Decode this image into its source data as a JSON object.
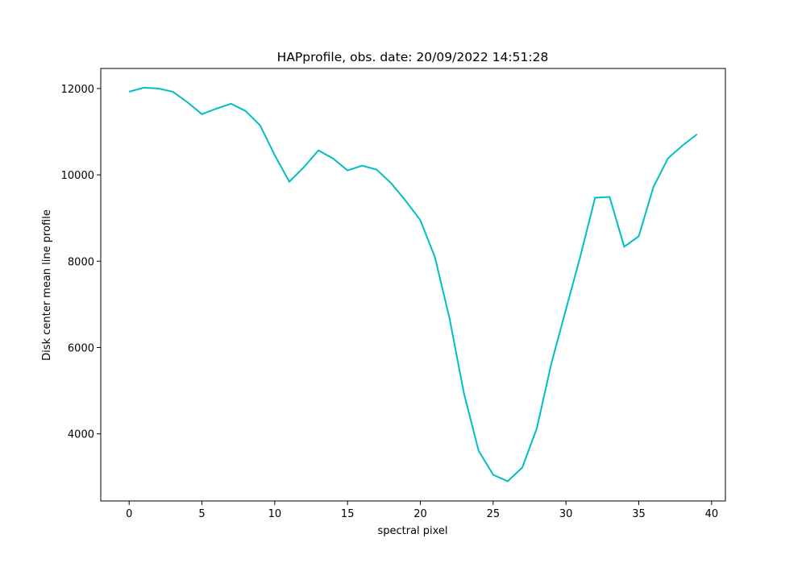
{
  "chart_data": {
    "type": "line",
    "title": "HAPprofile, obs. date: 20/09/2022 14:51:28",
    "xlabel": "spectral pixel",
    "ylabel": "Disk center mean line profile",
    "x": [
      0,
      1,
      2,
      3,
      4,
      5,
      6,
      7,
      8,
      9,
      10,
      11,
      12,
      13,
      14,
      15,
      16,
      17,
      18,
      19,
      20,
      21,
      22,
      23,
      24,
      25,
      26,
      27,
      28,
      29,
      30,
      31,
      32,
      33,
      34,
      35,
      36,
      37,
      38,
      39
    ],
    "series": [
      {
        "color": "#00bfbf",
        "values": [
          11926,
          12019,
          12000,
          11926,
          11684,
          11405,
          11535,
          11647,
          11479,
          11144,
          10456,
          9842,
          10177,
          10567,
          10381,
          10102,
          10214,
          10121,
          9805,
          9395,
          8949,
          8093,
          6679,
          4930,
          3609,
          3051,
          2902,
          3219,
          4130,
          5637,
          6884,
          8130,
          9470,
          9488,
          8335,
          8577,
          9712,
          10381,
          10679,
          10940
        ]
      }
    ],
    "xlim": [
      -1.95,
      40.95
    ],
    "xticks": [
      0,
      5,
      10,
      15,
      20,
      25,
      30,
      35,
      40
    ],
    "ylim": [
      2445,
      12465
    ],
    "yticks": [
      4000,
      6000,
      8000,
      10000,
      12000
    ],
    "grid": false
  }
}
